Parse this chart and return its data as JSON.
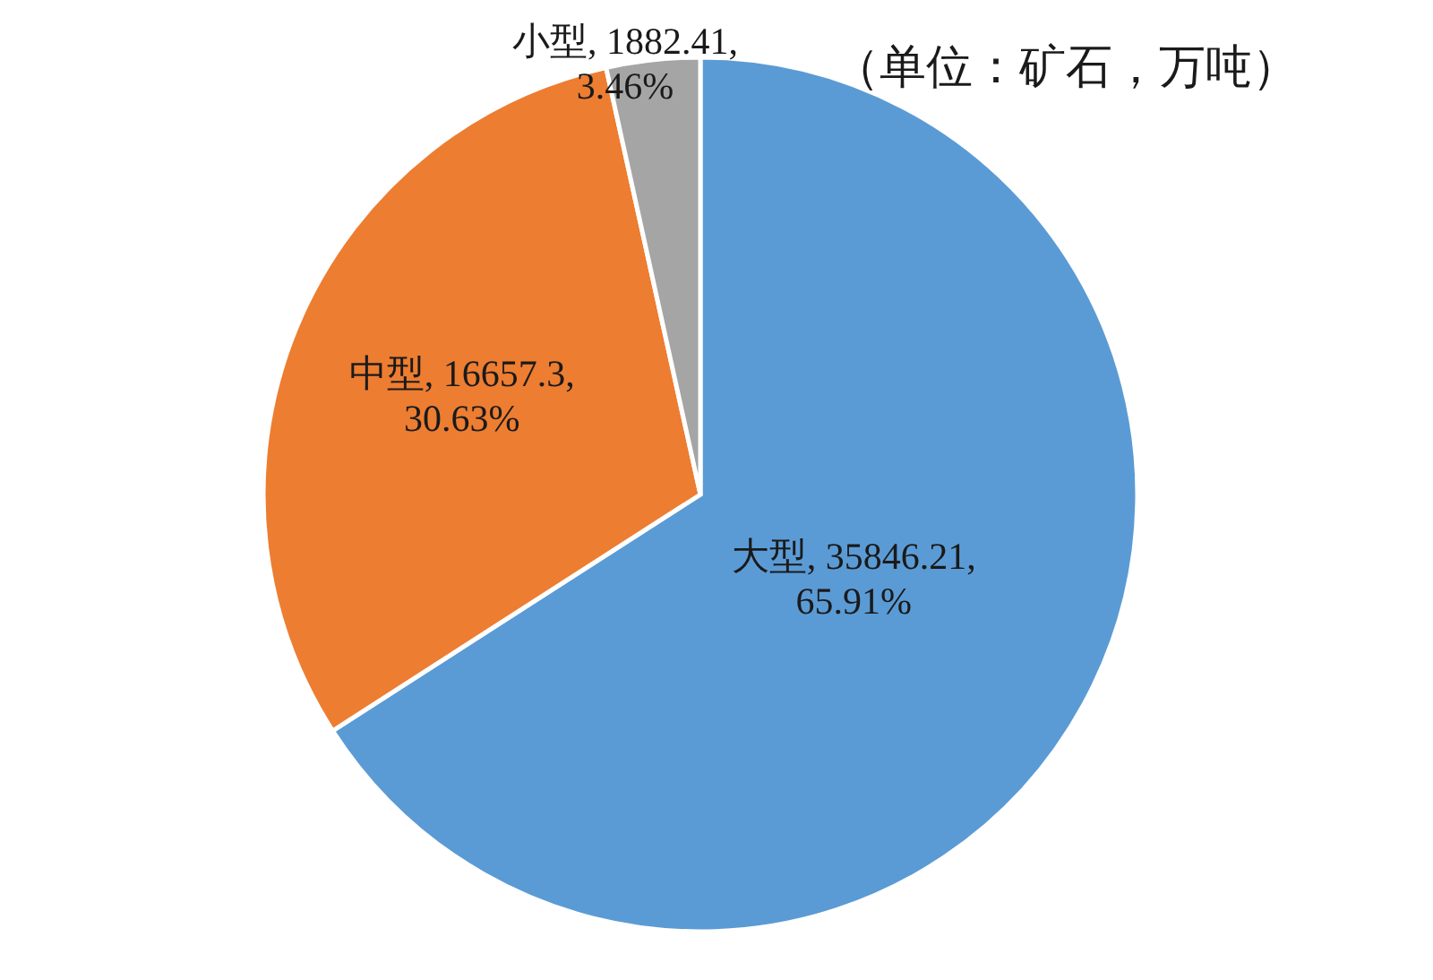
{
  "chart_data": {
    "type": "pie",
    "categories": [
      "大型",
      "中型",
      "小型"
    ],
    "values": [
      35846.21,
      16657.3,
      1882.41
    ],
    "colors": [
      "#5b9bd5",
      "#ed7d31",
      "#a5a5a5"
    ],
    "value_labels": [
      "35846.21,\n65.91%",
      "16657.3,\n30.63%",
      "1882.41,\n3.46%"
    ],
    "annotations": [
      "（单位：矿石，万吨）"
    ]
  }
}
